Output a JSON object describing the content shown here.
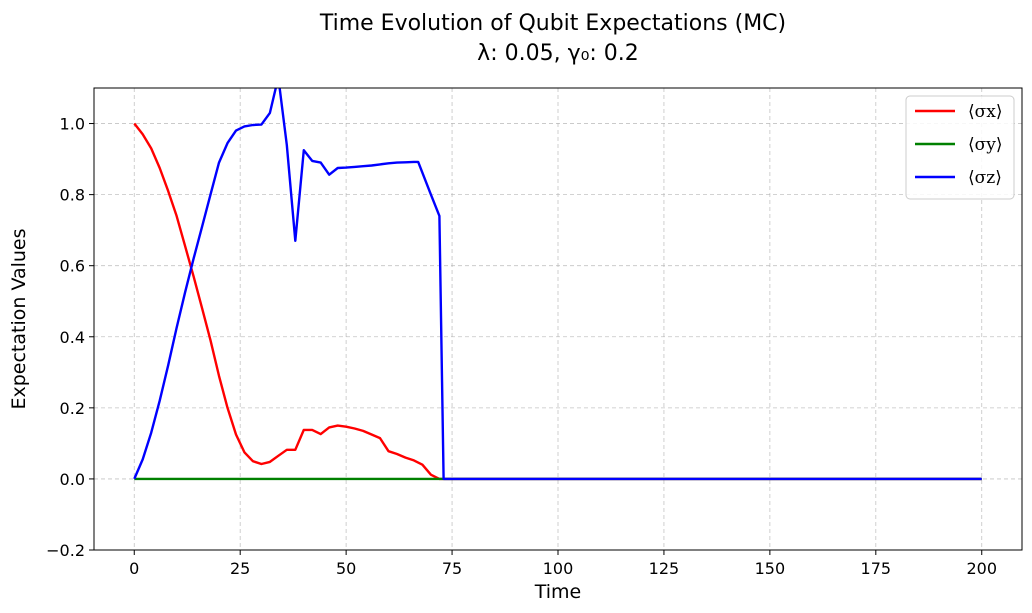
{
  "chart_data": {
    "type": "line",
    "title": "Time Evolution of Qubit Expectations (MC)",
    "subtitle": "λ: 0.05, γ₀: 0.2",
    "xlabel": "Time",
    "ylabel": "Expectation Values",
    "xlim": [
      -9.5,
      209.5
    ],
    "ylim": [
      -0.2,
      1.1
    ],
    "x_ticks": [
      0,
      25,
      50,
      75,
      100,
      125,
      150,
      175,
      200
    ],
    "y_ticks": [
      -0.2,
      0.0,
      0.2,
      0.4,
      0.6,
      0.8,
      1.0
    ],
    "y_tick_labels": [
      "−0.2",
      "0.0",
      "0.2",
      "0.4",
      "0.6",
      "0.8",
      "1.0"
    ],
    "grid": true,
    "legend_position": "top-right",
    "series": [
      {
        "name": "⟨σx⟩",
        "color": "#ff0000",
        "x": [
          0,
          2,
          4,
          6,
          8,
          10,
          12,
          14,
          16,
          18,
          20,
          22,
          24,
          26,
          28,
          30,
          32,
          34,
          36,
          38,
          40,
          42,
          44,
          46,
          48,
          50,
          52,
          54,
          56,
          58,
          60,
          62,
          64,
          66,
          68,
          70,
          72,
          73,
          200
        ],
        "y": [
          1.0,
          0.97,
          0.93,
          0.875,
          0.81,
          0.74,
          0.655,
          0.57,
          0.48,
          0.39,
          0.29,
          0.2,
          0.125,
          0.075,
          0.05,
          0.042,
          0.048,
          0.065,
          0.082,
          0.082,
          0.138,
          0.138,
          0.126,
          0.145,
          0.15,
          0.147,
          0.142,
          0.135,
          0.125,
          0.115,
          0.078,
          0.07,
          0.06,
          0.052,
          0.04,
          0.012,
          0.0,
          0.0,
          0.0
        ]
      },
      {
        "name": "⟨σy⟩",
        "color": "#008000",
        "x": [
          0,
          200
        ],
        "y": [
          0.0,
          0.0
        ]
      },
      {
        "name": "⟨σz⟩",
        "color": "#0000ff",
        "x": [
          0,
          2,
          4,
          6,
          8,
          10,
          12,
          14,
          16,
          18,
          20,
          22,
          24,
          26,
          28,
          30,
          32,
          34,
          36,
          38,
          40,
          42,
          44,
          46,
          48,
          50,
          52,
          54,
          56,
          58,
          60,
          62,
          64,
          66,
          67,
          70,
          72,
          73,
          200
        ],
        "y": [
          0.0,
          0.055,
          0.13,
          0.22,
          0.32,
          0.425,
          0.525,
          0.62,
          0.71,
          0.8,
          0.89,
          0.945,
          0.98,
          0.992,
          0.996,
          0.997,
          1.03,
          1.13,
          0.94,
          0.67,
          0.925,
          0.895,
          0.89,
          0.856,
          0.875,
          0.876,
          0.878,
          0.88,
          0.882,
          0.885,
          0.888,
          0.89,
          0.891,
          0.892,
          0.892,
          0.8,
          0.74,
          0.0,
          0.0
        ]
      }
    ]
  }
}
